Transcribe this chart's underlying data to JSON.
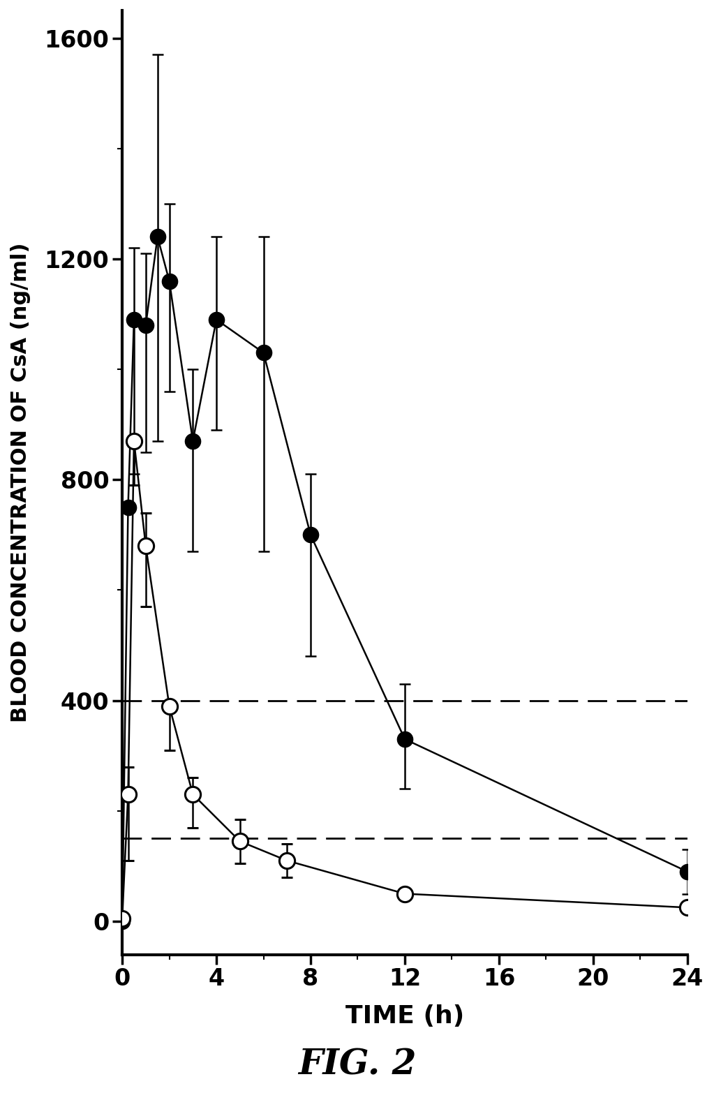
{
  "title": "FIG. 2",
  "xlabel": "TIME (h)",
  "ylabel": "BLOOD CONCENTRATION OF CsA (ng/ml)",
  "xlim": [
    0,
    24
  ],
  "ylim": [
    -60,
    1650
  ],
  "yticks": [
    0,
    400,
    800,
    1200,
    1600
  ],
  "xticks": [
    0,
    4,
    8,
    12,
    16,
    20,
    24
  ],
  "dashed_lines": [
    400,
    150
  ],
  "filled_x": [
    0,
    0.25,
    0.5,
    1.0,
    1.5,
    2.0,
    3.0,
    4.0,
    6.0,
    8.0,
    12.0,
    24.0
  ],
  "filled_y": [
    0,
    750,
    1090,
    1080,
    1240,
    1160,
    870,
    1090,
    1030,
    700,
    330,
    90
  ],
  "filled_yerr_lo": [
    0,
    0,
    280,
    230,
    370,
    200,
    200,
    200,
    360,
    220,
    90,
    40
  ],
  "filled_yerr_hi": [
    0,
    0,
    130,
    130,
    330,
    140,
    130,
    150,
    210,
    110,
    100,
    40
  ],
  "open_x": [
    0,
    0.25,
    0.5,
    1.0,
    2.0,
    3.0,
    5.0,
    7.0,
    12.0,
    24.0
  ],
  "open_y": [
    5,
    230,
    870,
    680,
    390,
    230,
    145,
    110,
    50,
    25
  ],
  "open_yerr_lo": [
    0,
    120,
    80,
    110,
    80,
    60,
    40,
    30,
    0,
    0
  ],
  "open_yerr_hi": [
    0,
    50,
    0,
    60,
    0,
    30,
    40,
    30,
    0,
    0
  ],
  "marker_size": 16,
  "line_width": 1.8,
  "elinewidth": 1.8,
  "capsize": 6,
  "background_color": "#ffffff",
  "line_color": "#000000",
  "figwidth": 10.23,
  "figheight": 15.66,
  "dpi": 100
}
